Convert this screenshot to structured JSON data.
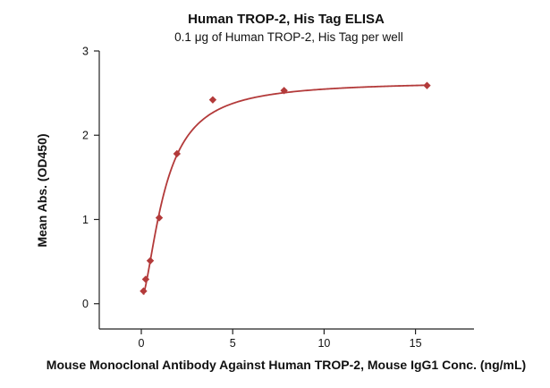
{
  "chart_data": {
    "type": "scatter",
    "title": "Human TROP-2, His Tag ELISA",
    "subtitle": "0.1 μg of Human TROP-2, His Tag per well",
    "xlabel": "Mouse Monoclonal Antibody Against Human TROP-2, Mouse IgG1 Conc. (ng/mL)",
    "ylabel": "Mean Abs. (OD450)",
    "xlim": [
      -2.3,
      18.2
    ],
    "ylim": [
      -0.3,
      3
    ],
    "xticks": [
      0,
      5,
      10,
      15
    ],
    "yticks": [
      0,
      1,
      2,
      3
    ],
    "grid": false,
    "colors": {
      "series": "#b33a3a",
      "axis": "#222222"
    },
    "series": [
      {
        "marker": "diamond",
        "x": [
          0.12,
          0.24,
          0.49,
          0.98,
          1.95,
          3.91,
          7.81,
          15.63
        ],
        "y": [
          0.15,
          0.29,
          0.51,
          1.02,
          1.78,
          2.42,
          2.53,
          2.59
        ],
        "fit": {
          "type": "4PL",
          "bottom": 0.05,
          "top": 2.64,
          "ec50": 1.28,
          "hill": 1.6,
          "x_range": [
            0.12,
            15.63
          ]
        }
      }
    ]
  }
}
